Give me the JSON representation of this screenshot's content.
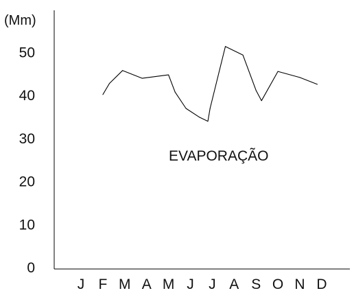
{
  "chart_data": {
    "type": "line",
    "title": "",
    "xlabel": "",
    "ylabel": "(Mm)",
    "annotation": "EVAPORAÇÃO",
    "categories": [
      "J",
      "F",
      "M",
      "A",
      "M",
      "J",
      "J",
      "A",
      "S",
      "O",
      "N",
      "D"
    ],
    "yticks": [
      0,
      10,
      20,
      30,
      40,
      50
    ],
    "ylim": [
      0,
      56
    ],
    "grid": false,
    "legend": "none",
    "line_color": "#000000",
    "series": [
      {
        "points": [
          {
            "x": 1.0,
            "y": 40.2
          },
          {
            "x": 1.3,
            "y": 42.8
          },
          {
            "x": 1.9,
            "y": 45.8
          },
          {
            "x": 2.8,
            "y": 44.0
          },
          {
            "x": 4.0,
            "y": 44.8
          },
          {
            "x": 4.3,
            "y": 40.8
          },
          {
            "x": 4.8,
            "y": 37.0
          },
          {
            "x": 5.4,
            "y": 35.0
          },
          {
            "x": 5.8,
            "y": 34.0
          },
          {
            "x": 5.9,
            "y": 37.0
          },
          {
            "x": 6.6,
            "y": 51.4
          },
          {
            "x": 7.4,
            "y": 49.4
          },
          {
            "x": 8.0,
            "y": 41.2
          },
          {
            "x": 8.25,
            "y": 38.8
          },
          {
            "x": 9.0,
            "y": 45.6
          },
          {
            "x": 10.0,
            "y": 44.2
          },
          {
            "x": 10.8,
            "y": 42.6
          }
        ]
      }
    ]
  }
}
